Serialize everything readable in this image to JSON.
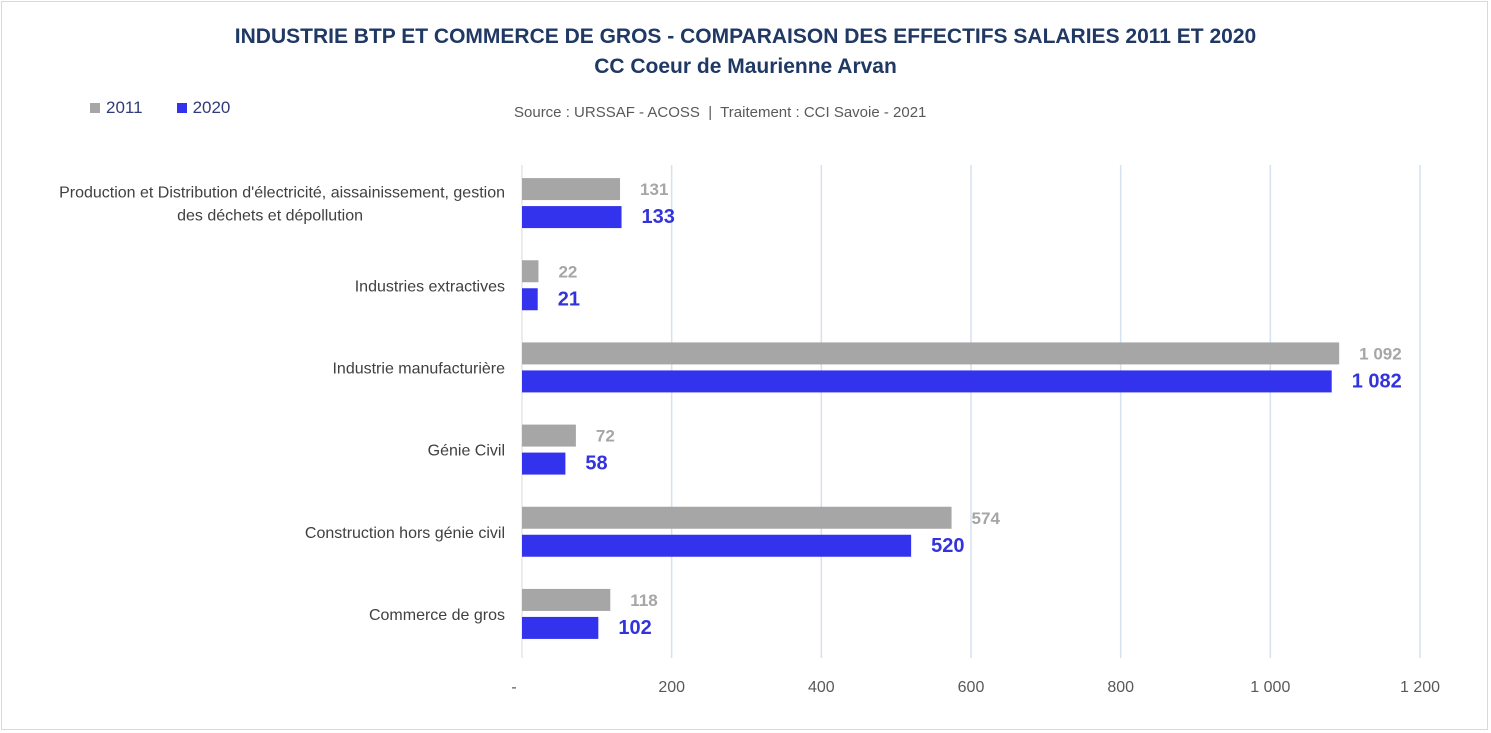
{
  "chart_data": {
    "type": "bar",
    "orientation": "horizontal",
    "title": "INDUSTRIE BTP ET COMMERCE DE GROS - COMPARAISON DES EFFECTIFS SALARIES 2011 ET 2020",
    "subtitle": "CC Coeur de Maurienne Arvan",
    "source": "Source : URSSAF - ACOSS  |  Traitement : CCI Savoie - 2021",
    "categories": [
      [
        "Production et Distribution d'électricité, aissainissement, gestion",
        "des déchets et dépollution"
      ],
      [
        "Industries extractives"
      ],
      [
        "Industrie manufacturière"
      ],
      [
        "Génie Civil"
      ],
      [
        "Construction hors génie civil"
      ],
      [
        "Commerce de gros"
      ]
    ],
    "series": [
      {
        "name": "2011",
        "color": "#a6a6a6",
        "label_color": "#a6a6a6",
        "values": [
          131,
          22,
          1092,
          72,
          574,
          118
        ],
        "labels": [
          "131",
          "22",
          "1 092",
          "72",
          "574",
          "118"
        ]
      },
      {
        "name": "2020",
        "color": "#3333ee",
        "label_color": "#3333dd",
        "values": [
          133,
          21,
          1082,
          58,
          520,
          102
        ],
        "labels": [
          "133",
          "21",
          "1 082",
          "58",
          "520",
          "102"
        ]
      }
    ],
    "xlim": [
      0,
      1200
    ],
    "ticks": [
      0,
      200,
      400,
      600,
      800,
      1000,
      1200
    ],
    "tick_labels": [
      "-",
      "200",
      "400",
      "600",
      "800",
      "1 000",
      "1 200"
    ],
    "grid": true,
    "legend_position": "top-left"
  }
}
